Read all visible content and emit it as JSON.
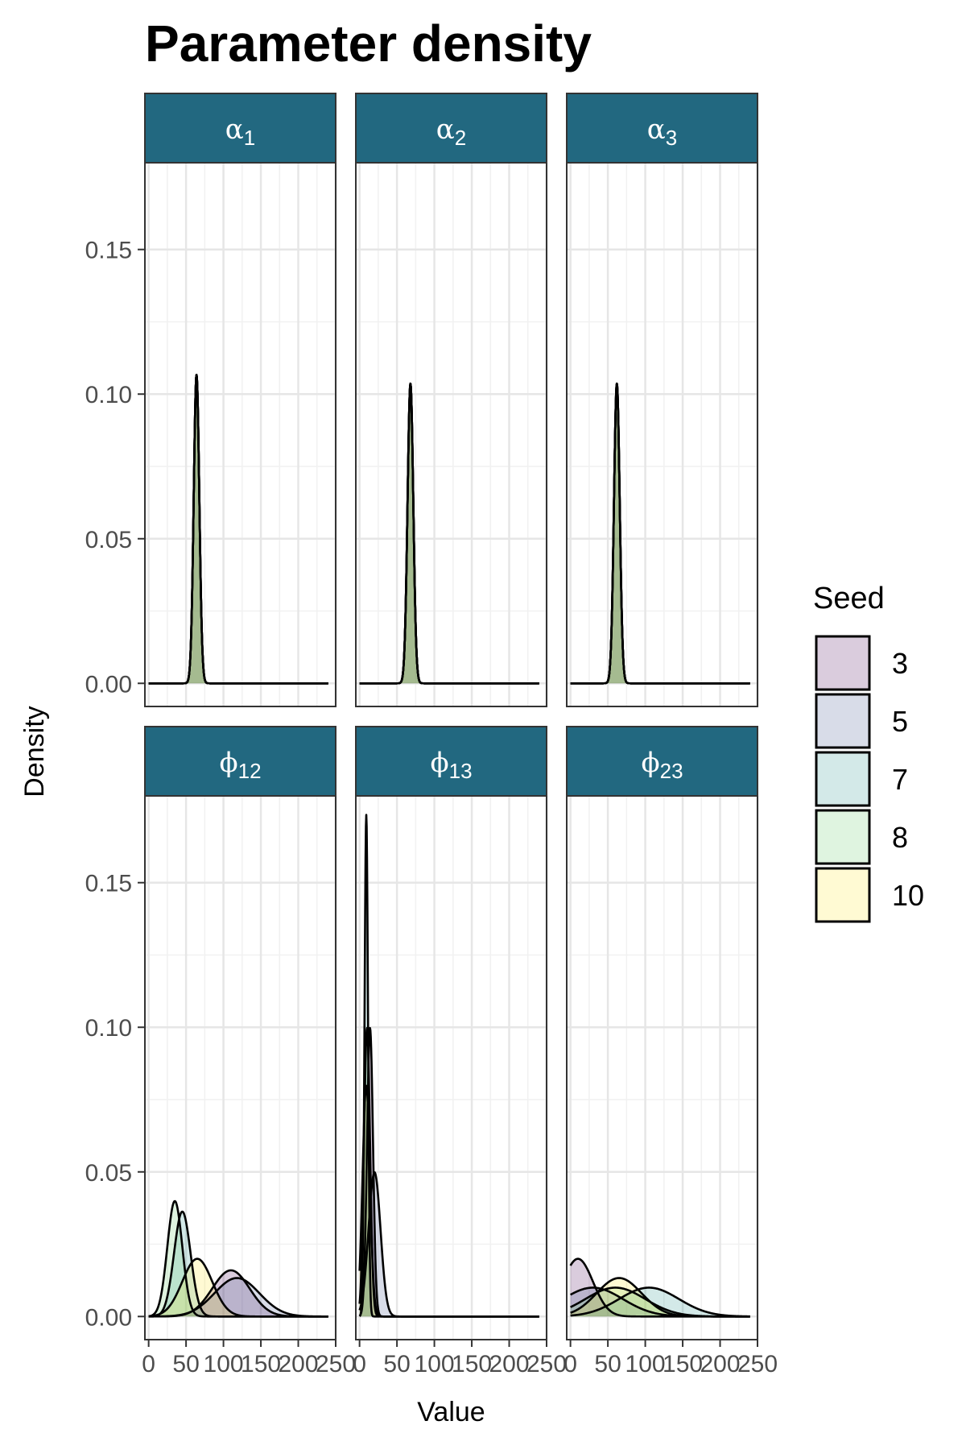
{
  "chart_data": {
    "type": "area",
    "title": "Parameter density",
    "xlabel": "Value",
    "ylabel": "Density",
    "xlim": [
      -5,
      250
    ],
    "x_ticks": [
      0,
      50,
      100,
      150,
      200,
      250
    ],
    "x_tick_labels": [
      "0",
      "50",
      "100",
      "150",
      "200",
      "250"
    ],
    "ylim": [
      -0.008,
      0.18
    ],
    "y_ticks": [
      0,
      0.05,
      0.1,
      0.15
    ],
    "y_tick_labels": [
      "0.00",
      "0.05",
      "0.10",
      "0.15"
    ],
    "grid": true,
    "legend": {
      "title": "Seed",
      "position": "right",
      "entries": [
        {
          "label": "3",
          "color": "#440154"
        },
        {
          "label": "5",
          "color": "#3b528b"
        },
        {
          "label": "7",
          "color": "#21908c"
        },
        {
          "label": "8",
          "color": "#5dc863"
        },
        {
          "label": "10",
          "color": "#fde725"
        }
      ]
    },
    "fill_alpha": 0.2,
    "strip_color": "#226880",
    "panels": [
      {
        "symbol": "α",
        "sub": "1",
        "series": [
          {
            "seed": "3",
            "mu": 64,
            "sd": 3.74
          },
          {
            "seed": "5",
            "mu": 64,
            "sd": 3.74
          },
          {
            "seed": "7",
            "mu": 64,
            "sd": 3.74
          },
          {
            "seed": "8",
            "mu": 64,
            "sd": 3.74
          },
          {
            "seed": "10",
            "mu": 64,
            "sd": 3.74
          }
        ]
      },
      {
        "symbol": "α",
        "sub": "2",
        "series": [
          {
            "seed": "3",
            "mu": 68,
            "sd": 3.85
          },
          {
            "seed": "5",
            "mu": 68,
            "sd": 3.85
          },
          {
            "seed": "7",
            "mu": 68,
            "sd": 3.85
          },
          {
            "seed": "8",
            "mu": 68,
            "sd": 3.85
          },
          {
            "seed": "10",
            "mu": 68,
            "sd": 3.85
          }
        ]
      },
      {
        "symbol": "α",
        "sub": "3",
        "series": [
          {
            "seed": "3",
            "mu": 62,
            "sd": 3.85
          },
          {
            "seed": "5",
            "mu": 62,
            "sd": 3.85
          },
          {
            "seed": "7",
            "mu": 62,
            "sd": 3.85
          },
          {
            "seed": "8",
            "mu": 62,
            "sd": 3.85
          },
          {
            "seed": "10",
            "mu": 62,
            "sd": 3.85
          }
        ]
      },
      {
        "symbol": "ϕ",
        "sub": "12",
        "series": [
          {
            "seed": "3",
            "mu": 110,
            "sd": 25
          },
          {
            "seed": "5",
            "mu": 118,
            "sd": 30
          },
          {
            "seed": "7",
            "mu": 45,
            "sd": 11
          },
          {
            "seed": "8",
            "mu": 35,
            "sd": 10
          },
          {
            "seed": "10",
            "mu": 65,
            "sd": 20
          }
        ]
      },
      {
        "symbol": "ϕ",
        "sub": "13",
        "series": [
          {
            "seed": "3",
            "mu": 14,
            "sd": 4
          },
          {
            "seed": "5",
            "mu": 20,
            "sd": 8
          },
          {
            "seed": "7",
            "mu": 9,
            "sd": 2.3
          },
          {
            "seed": "8",
            "mu": 10,
            "sd": 4
          },
          {
            "seed": "10",
            "mu": 9,
            "sd": 5
          }
        ]
      },
      {
        "symbol": "ϕ",
        "sub": "23",
        "series": [
          {
            "seed": "3",
            "mu": 10,
            "sd": 20
          },
          {
            "seed": "5",
            "mu": 30,
            "sd": 40
          },
          {
            "seed": "7",
            "mu": 105,
            "sd": 40
          },
          {
            "seed": "8",
            "mu": 60,
            "sd": 40
          },
          {
            "seed": "10",
            "mu": 65,
            "sd": 30
          }
        ]
      }
    ]
  }
}
